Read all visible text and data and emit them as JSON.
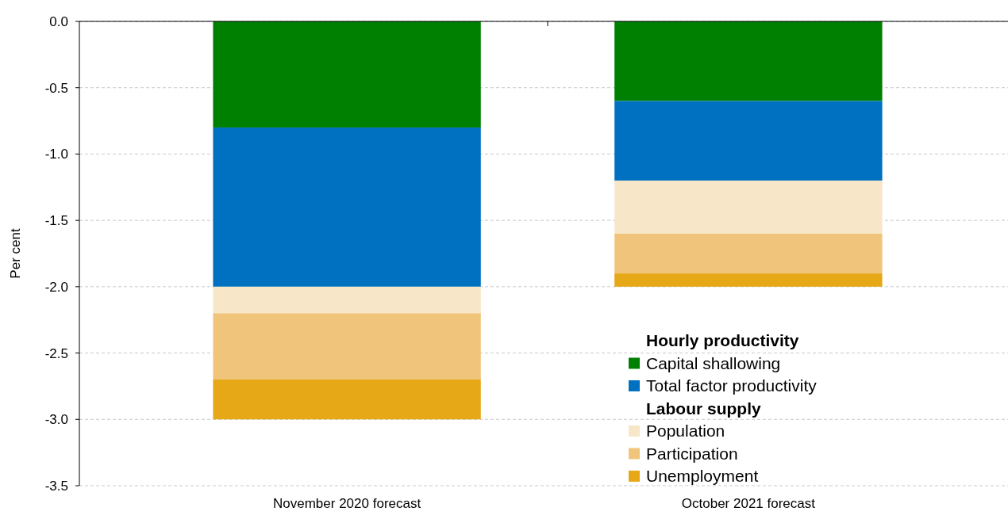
{
  "chart_data": {
    "type": "bar",
    "stacked": true,
    "ylabel": "Per cent",
    "categories": [
      "November 2020 forecast",
      "October 2021 forecast"
    ],
    "series": [
      {
        "name": "Capital shallowing",
        "color": "#008000",
        "values": [
          -0.8,
          -0.6
        ]
      },
      {
        "name": "Total factor productivity",
        "color": "#0070c0",
        "values": [
          -1.2,
          -0.6
        ]
      },
      {
        "name": "Population",
        "color": "#f8e6c8",
        "values": [
          -0.2,
          -0.4
        ]
      },
      {
        "name": "Participation",
        "color": "#f0c47a",
        "values": [
          -0.5,
          -0.3
        ]
      },
      {
        "name": "Unemployment",
        "color": "#e6a817",
        "values": [
          -0.3,
          -0.1
        ]
      }
    ],
    "annotations": [
      "Hourly productivity",
      "Labour supply"
    ],
    "ylim": [
      -3.5,
      0
    ],
    "yticks": [
      {
        "value": 0,
        "label": "0.0"
      },
      -0.5,
      {
        "value": -1,
        "label": "-1.0"
      },
      -1.5,
      {
        "value": -2,
        "label": "-2.0"
      },
      -2.5,
      {
        "value": -3,
        "label": "-3.0"
      },
      -3.5
    ],
    "grid": "y",
    "legend": "bottom right"
  }
}
